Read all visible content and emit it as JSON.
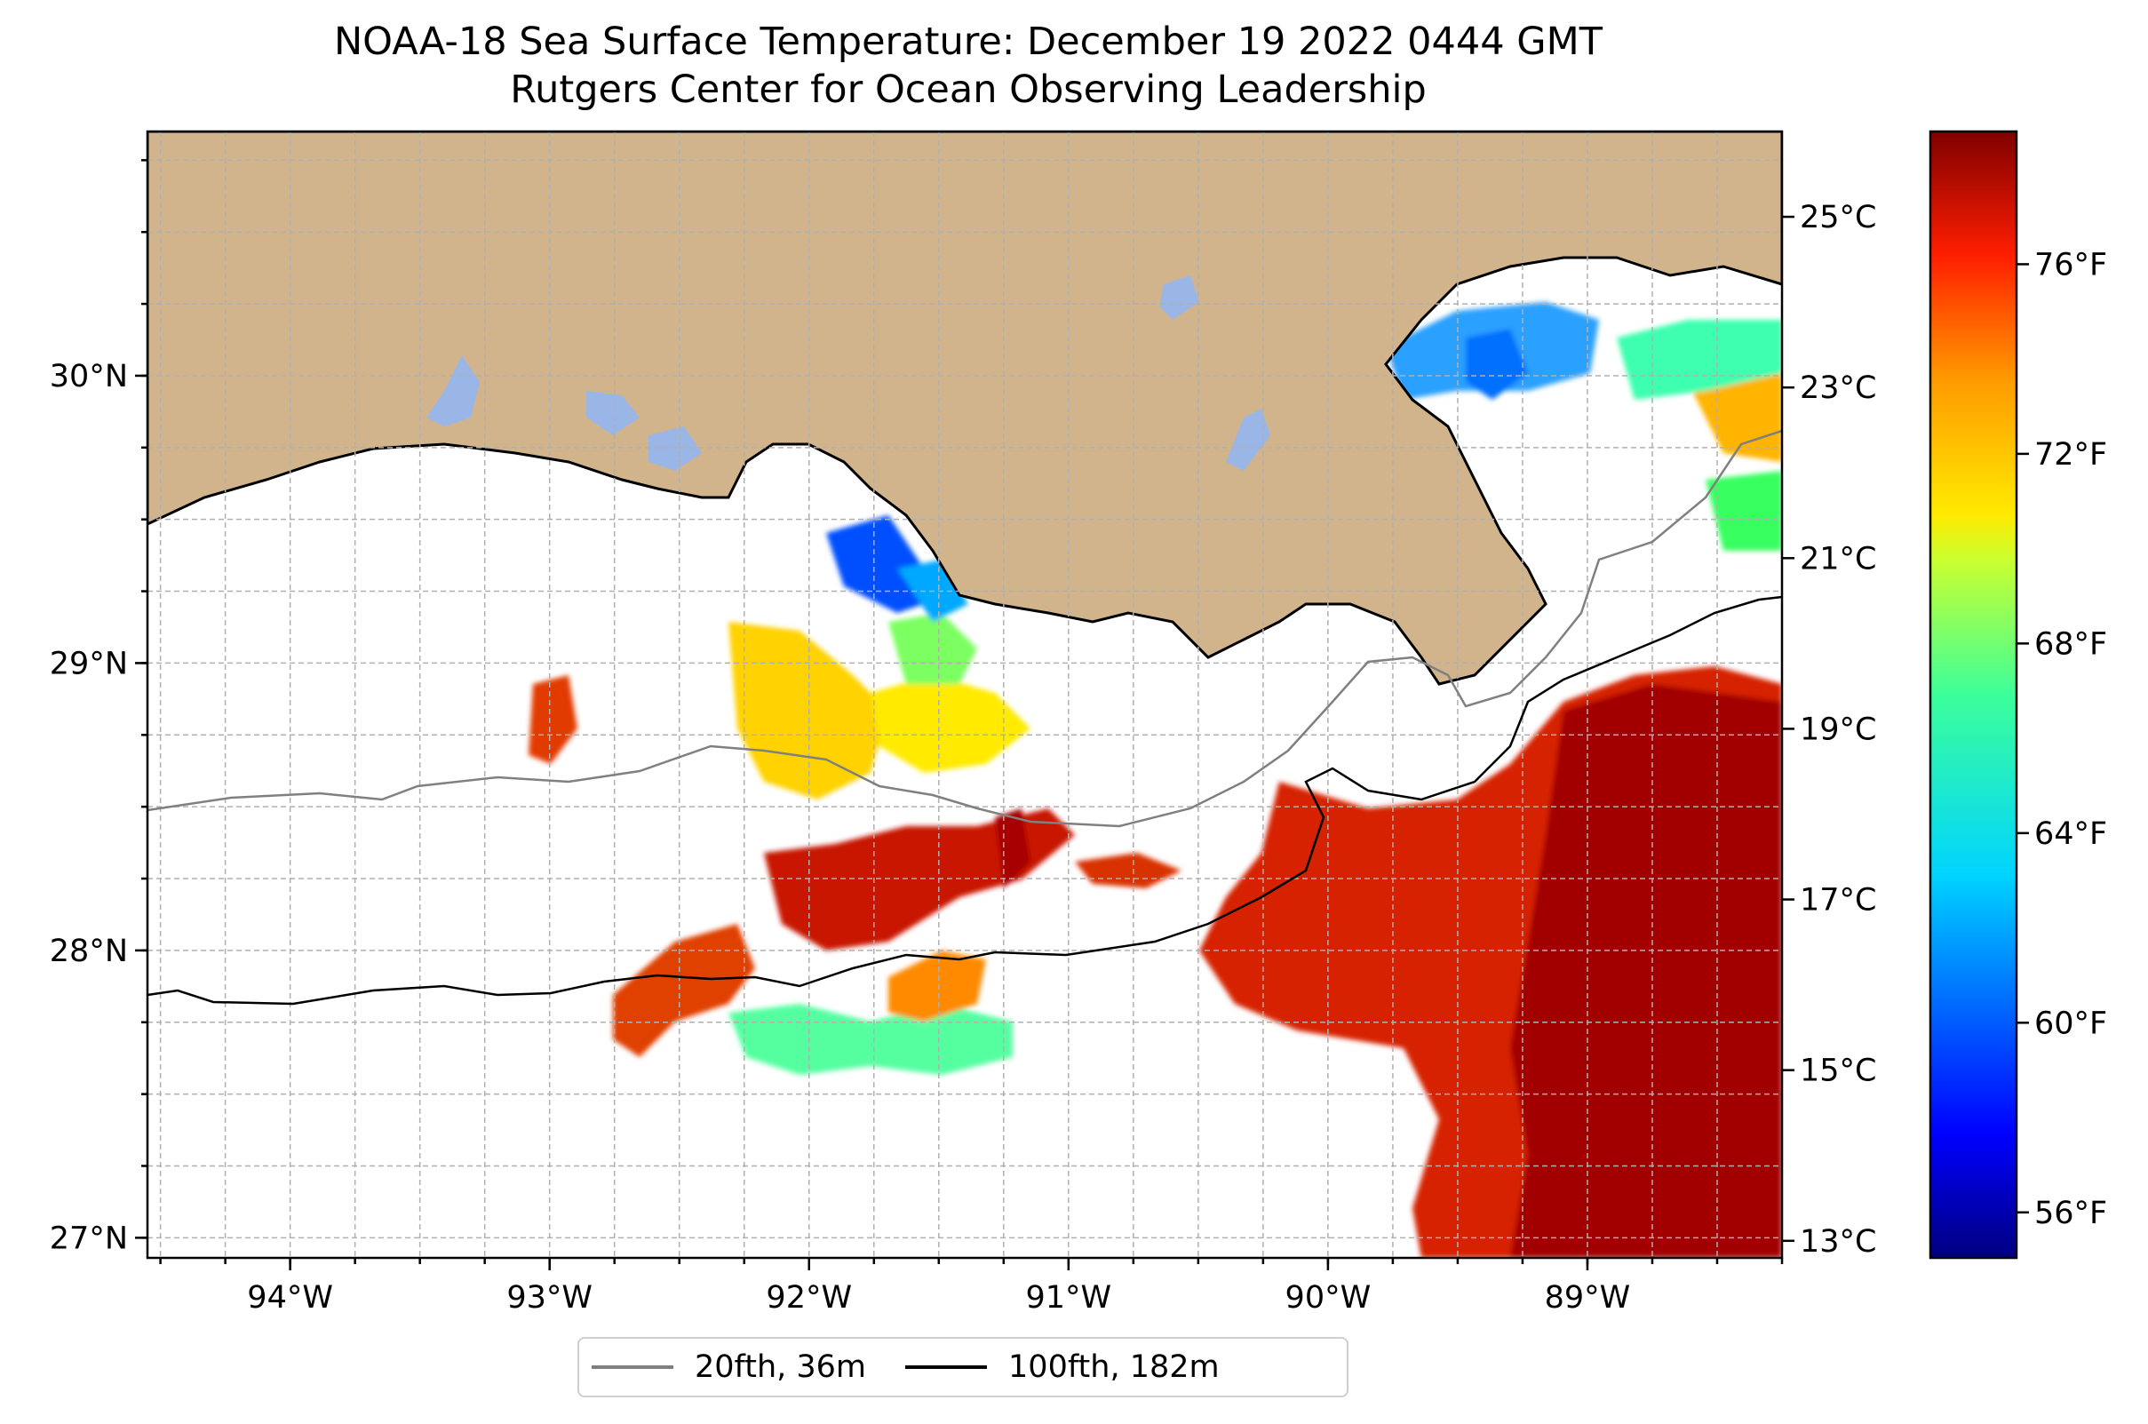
{
  "title": {
    "line1": "NOAA-18 Sea Surface Temperature: December 19 2022 0444 GMT",
    "line2": "Rutgers Center for Ocean Observing Leadership"
  },
  "map": {
    "lon_range": [
      -94.55,
      -88.25
    ],
    "lat_range": [
      26.93,
      30.85
    ],
    "lon_ticks": [
      -94,
      -93,
      -92,
      -91,
      -90,
      -89
    ],
    "lon_tick_labels": [
      "94°W",
      "93°W",
      "92°W",
      "91°W",
      "90°W",
      "89°W"
    ],
    "lat_ticks": [
      27,
      28,
      29,
      30
    ],
    "lat_tick_labels": [
      "27°N",
      "28°N",
      "29°N",
      "30°N"
    ],
    "grid": "dashed, every 0.25 degree",
    "colors": {
      "land": "#d2b48c",
      "inland_water": "#9ab6e6",
      "ocean_no_data": "#ffffff",
      "isobath_20fth": "#808080",
      "isobath_100fth": "#000000"
    }
  },
  "colorbar": {
    "colormap": "jet",
    "celsius_range": [
      12.8,
      26.0
    ],
    "celsius_ticks": [
      13,
      15,
      17,
      19,
      21,
      23,
      25
    ],
    "celsius_labels": [
      "13°C",
      "15°C",
      "17°C",
      "19°C",
      "21°C",
      "23°C",
      "25°C"
    ],
    "fahrenheit_ticks": [
      56,
      60,
      64,
      68,
      72,
      76
    ],
    "fahrenheit_labels": [
      "56°F",
      "60°F",
      "64°F",
      "68°F",
      "72°F",
      "76°F"
    ]
  },
  "legend": {
    "items": [
      {
        "label": "20fth, 36m",
        "color": "#808080"
      },
      {
        "label": "100fth, 182m",
        "color": "#000000"
      }
    ]
  }
}
